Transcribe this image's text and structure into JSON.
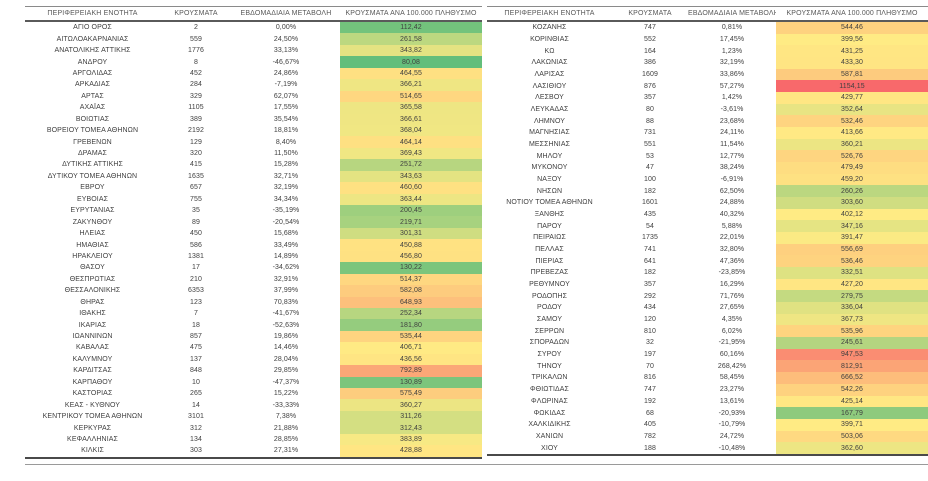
{
  "columns": [
    "ΠΕΡΙΦΕΡΕΙΑΚΗ ΕΝΟΤΗΤΑ",
    "ΚΡΟΥΣΜΑΤΑ",
    "ΕΒΔΟΜΑΔΙΑΙΑ ΜΕΤΑΒΟΛΗ",
    "ΚΡΟΥΣΜΑΤΑ ΑΝΑ 100.000 ΠΛΗΘΥΣΜΟ"
  ],
  "heatmap": {
    "applies_to_column": "ΚΡΟΥΣΜΑΤΑ ΑΝΑ 100.000 ΠΛΗΘΥΣΜΟ",
    "min_color": "#63BE7B",
    "mid_color": "#FFEB84",
    "max_color": "#F8696B",
    "midpoint_rule": "50th-percentile",
    "scale_scope": "both-tables-combined"
  },
  "styles": {
    "text_color": "#3F3F3F",
    "header_text_color": "#595959",
    "header_border_color": "#5A5A5A",
    "table_top_border_color": "#8A8A8A",
    "table_bottom_border_color": "#4A4A4A"
  },
  "tables": [
    {
      "rows": [
        [
          "ΑΓΙΟ ΟΡΟΣ",
          "2",
          "0,00%",
          "112,42"
        ],
        [
          "ΑΙΤΩΛΟΑΚΑΡΝΑΝΙΑΣ",
          "559",
          "24,50%",
          "261,58"
        ],
        [
          "ΑΝΑΤΟΛΙΚΗΣ ΑΤΤΙΚΗΣ",
          "1776",
          "33,13%",
          "343,82"
        ],
        [
          "ΑΝΔΡΟΥ",
          "8",
          "-46,67%",
          "80,08"
        ],
        [
          "ΑΡΓΟΛΙΔΑΣ",
          "452",
          "24,86%",
          "464,55"
        ],
        [
          "ΑΡΚΑΔΙΑΣ",
          "284",
          "-7,19%",
          "366,21"
        ],
        [
          "ΑΡΤΑΣ",
          "329",
          "62,07%",
          "514,65"
        ],
        [
          "ΑΧΑΪΑΣ",
          "1105",
          "17,55%",
          "365,58"
        ],
        [
          "ΒΟΙΩΤΙΑΣ",
          "389",
          "35,54%",
          "366,61"
        ],
        [
          "ΒΟΡΕΙΟΥ ΤΟΜΕΑ ΑΘΗΝΩΝ",
          "2192",
          "18,81%",
          "368,04"
        ],
        [
          "ΓΡΕΒΕΝΩΝ",
          "129",
          "8,40%",
          "464,14"
        ],
        [
          "ΔΡΑΜΑΣ",
          "320",
          "11,50%",
          "369,43"
        ],
        [
          "ΔΥΤΙΚΗΣ ΑΤΤΙΚΗΣ",
          "415",
          "15,28%",
          "251,72"
        ],
        [
          "ΔΥΤΙΚΟΥ ΤΟΜΕΑ ΑΘΗΝΩΝ",
          "1635",
          "32,71%",
          "343,63"
        ],
        [
          "ΕΒΡΟΥ",
          "657",
          "32,19%",
          "460,60"
        ],
        [
          "ΕΥΒΟΙΑΣ",
          "755",
          "34,34%",
          "363,44"
        ],
        [
          "ΕΥΡΥΤΑΝΙΑΣ",
          "35",
          "-35,19%",
          "200,45"
        ],
        [
          "ΖΑΚΥΝΘΟΥ",
          "89",
          "-20,54%",
          "219,71"
        ],
        [
          "ΗΛΕΙΑΣ",
          "450",
          "15,68%",
          "301,31"
        ],
        [
          "ΗΜΑΘΙΑΣ",
          "586",
          "33,49%",
          "450,88"
        ],
        [
          "ΗΡΑΚΛΕΙΟΥ",
          "1381",
          "14,89%",
          "456,80"
        ],
        [
          "ΘΑΣΟΥ",
          "17",
          "-34,62%",
          "130,22"
        ],
        [
          "ΘΕΣΠΡΩΤΙΑΣ",
          "210",
          "32,91%",
          "514,37"
        ],
        [
          "ΘΕΣΣΑΛΟΝΙΚΗΣ",
          "6353",
          "37,99%",
          "582,08"
        ],
        [
          "ΘΗΡΑΣ",
          "123",
          "70,83%",
          "648,93"
        ],
        [
          "ΙΘΑΚΗΣ",
          "7",
          "-41,67%",
          "252,34"
        ],
        [
          "ΙΚΑΡΙΑΣ",
          "18",
          "-52,63%",
          "181,80"
        ],
        [
          "ΙΩΑΝΝΙΝΩΝ",
          "857",
          "19,86%",
          "535,44"
        ],
        [
          "ΚΑΒΑΛΑΣ",
          "475",
          "14,46%",
          "406,71"
        ],
        [
          "ΚΑΛΥΜΝΟΥ",
          "137",
          "28,04%",
          "436,56"
        ],
        [
          "ΚΑΡΔΙΤΣΑΣ",
          "848",
          "29,85%",
          "792,89"
        ],
        [
          "ΚΑΡΠΑΘΟΥ",
          "10",
          "-47,37%",
          "130,89"
        ],
        [
          "ΚΑΣΤΟΡΙΑΣ",
          "265",
          "15,22%",
          "575,49"
        ],
        [
          "ΚΕΑΣ - ΚΥΘΝΟΥ",
          "14",
          "-33,33%",
          "360,27"
        ],
        [
          "ΚΕΝΤΡΙΚΟΥ ΤΟΜΕΑ ΑΘΗΝΩΝ",
          "3101",
          "7,38%",
          "311,26"
        ],
        [
          "ΚΕΡΚΥΡΑΣ",
          "312",
          "21,88%",
          "312,43"
        ],
        [
          "ΚΕΦΑΛΛΗΝΙΑΣ",
          "134",
          "28,85%",
          "383,89"
        ],
        [
          "ΚΙΛΚΙΣ",
          "303",
          "27,31%",
          "428,88"
        ]
      ]
    },
    {
      "rows": [
        [
          "ΚΟΖΑΝΗΣ",
          "747",
          "0,81%",
          "544,46"
        ],
        [
          "ΚΟΡΙΝΘΙΑΣ",
          "552",
          "17,45%",
          "399,56"
        ],
        [
          "ΚΩ",
          "164",
          "1,23%",
          "431,25"
        ],
        [
          "ΛΑΚΩΝΙΑΣ",
          "386",
          "32,19%",
          "433,30"
        ],
        [
          "ΛΑΡΙΣΑΣ",
          "1609",
          "33,86%",
          "587,81"
        ],
        [
          "ΛΑΣΙΘΙΟΥ",
          "876",
          "57,27%",
          "1154,15"
        ],
        [
          "ΛΕΣΒΟΥ",
          "357",
          "1,42%",
          "429,77"
        ],
        [
          "ΛΕΥΚΑΔΑΣ",
          "80",
          "-3,61%",
          "352,64"
        ],
        [
          "ΛΗΜΝΟΥ",
          "88",
          "23,68%",
          "532,46"
        ],
        [
          "ΜΑΓΝΗΣΙΑΣ",
          "731",
          "24,11%",
          "413,66"
        ],
        [
          "ΜΕΣΣΗΝΙΑΣ",
          "551",
          "11,54%",
          "360,21"
        ],
        [
          "ΜΗΛΟΥ",
          "53",
          "12,77%",
          "526,76"
        ],
        [
          "ΜΥΚΟΝΟΥ",
          "47",
          "38,24%",
          "479,49"
        ],
        [
          "ΝΑΞΟΥ",
          "100",
          "-6,91%",
          "459,20"
        ],
        [
          "ΝΗΣΩΝ",
          "182",
          "62,50%",
          "260,26"
        ],
        [
          "ΝΟΤΙΟΥ ΤΟΜΕΑ ΑΘΗΝΩΝ",
          "1601",
          "24,88%",
          "303,60"
        ],
        [
          "ΞΑΝΘΗΣ",
          "435",
          "40,32%",
          "402,12"
        ],
        [
          "ΠΑΡΟΥ",
          "54",
          "5,88%",
          "347,16"
        ],
        [
          "ΠΕΙΡΑΙΩΣ",
          "1735",
          "22,01%",
          "391,47"
        ],
        [
          "ΠΕΛΛΑΣ",
          "741",
          "32,80%",
          "556,69"
        ],
        [
          "ΠΙΕΡΙΑΣ",
          "641",
          "47,36%",
          "536,46"
        ],
        [
          "ΠΡΕΒΕΖΑΣ",
          "182",
          "-23,85%",
          "332,51"
        ],
        [
          "ΡΕΘΥΜΝΟΥ",
          "357",
          "16,29%",
          "427,20"
        ],
        [
          "ΡΟΔΟΠΗΣ",
          "292",
          "71,76%",
          "279,75"
        ],
        [
          "ΡΟΔΟΥ",
          "434",
          "27,65%",
          "336,04"
        ],
        [
          "ΣΑΜΟΥ",
          "120",
          "4,35%",
          "367,73"
        ],
        [
          "ΣΕΡΡΩΝ",
          "810",
          "6,02%",
          "535,96"
        ],
        [
          "ΣΠΟΡΑΔΩΝ",
          "32",
          "-21,95%",
          "245,61"
        ],
        [
          "ΣΥΡΟΥ",
          "197",
          "60,16%",
          "947,53"
        ],
        [
          "ΤΗΝΟΥ",
          "70",
          "268,42%",
          "812,91"
        ],
        [
          "ΤΡΙΚΑΛΩΝ",
          "816",
          "58,45%",
          "666,52"
        ],
        [
          "ΦΘΙΩΤΙΔΑΣ",
          "747",
          "23,27%",
          "542,26"
        ],
        [
          "ΦΛΩΡΙΝΑΣ",
          "192",
          "13,61%",
          "425,14"
        ],
        [
          "ΦΩΚΙΔΑΣ",
          "68",
          "-20,93%",
          "167,79"
        ],
        [
          "ΧΑΛΚΙΔΙΚΗΣ",
          "405",
          "-10,79%",
          "399,71"
        ],
        [
          "ΧΑΝΙΩΝ",
          "782",
          "24,72%",
          "503,06"
        ],
        [
          "ΧΙΟΥ",
          "188",
          "-10,48%",
          "362,60"
        ]
      ]
    }
  ]
}
